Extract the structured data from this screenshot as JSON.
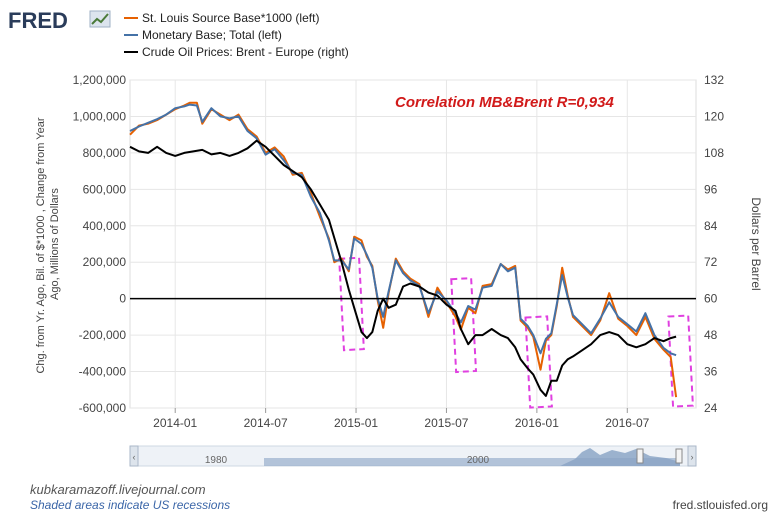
{
  "brand": {
    "logo_text": "FRED"
  },
  "chart_data": {
    "type": "line",
    "annotation": "Correlation MB&Brent R=0,934",
    "ylabel_left": "Chg. from Yr. Ago, Bil. of $*1000 , Change from Year Ago, Millions of Dollars",
    "ylabel_right": "Dollars per Barrel",
    "ylim_left": [
      -600000,
      1200000
    ],
    "ylim_right": [
      24,
      132
    ],
    "x_range": [
      2013.75,
      2016.88
    ],
    "x_ticks": [
      {
        "x": 2014.0,
        "label": "2014-01"
      },
      {
        "x": 2014.5,
        "label": "2014-07"
      },
      {
        "x": 2015.0,
        "label": "2015-01"
      },
      {
        "x": 2015.5,
        "label": "2015-07"
      },
      {
        "x": 2016.0,
        "label": "2016-01"
      },
      {
        "x": 2016.5,
        "label": "2016-07"
      }
    ],
    "y_ticks_left": [
      {
        "v": 1200000,
        "label": "1,200,000"
      },
      {
        "v": 1000000,
        "label": "1,000,000"
      },
      {
        "v": 800000,
        "label": "800,000"
      },
      {
        "v": 600000,
        "label": "600,000"
      },
      {
        "v": 400000,
        "label": "400,000"
      },
      {
        "v": 200000,
        "label": "200,000"
      },
      {
        "v": 0,
        "label": "0"
      },
      {
        "v": -200000,
        "label": "-200,000"
      },
      {
        "v": -400000,
        "label": "-400,000"
      },
      {
        "v": -600000,
        "label": "-600,000"
      }
    ],
    "y_ticks_right": [
      {
        "v": 132,
        "label": "132"
      },
      {
        "v": 120,
        "label": "120"
      },
      {
        "v": 108,
        "label": "108"
      },
      {
        "v": 96,
        "label": "96"
      },
      {
        "v": 84,
        "label": "84"
      },
      {
        "v": 72,
        "label": "72"
      },
      {
        "v": 60,
        "label": "60"
      },
      {
        "v": 48,
        "label": "48"
      },
      {
        "v": 36,
        "label": "36"
      },
      {
        "v": 24,
        "label": "24"
      }
    ],
    "series": [
      {
        "name": "St. Louis Source Base*1000 (left)",
        "color": "#e66101",
        "axis": "left",
        "points": [
          [
            2013.75,
            900000
          ],
          [
            2013.8,
            950000
          ],
          [
            2013.85,
            960000
          ],
          [
            2013.9,
            980000
          ],
          [
            2013.95,
            1010000
          ],
          [
            2014.0,
            1040000
          ],
          [
            2014.05,
            1060000
          ],
          [
            2014.08,
            1075000
          ],
          [
            2014.12,
            1075000
          ],
          [
            2014.15,
            960000
          ],
          [
            2014.2,
            1040000
          ],
          [
            2014.25,
            1010000
          ],
          [
            2014.3,
            980000
          ],
          [
            2014.35,
            1010000
          ],
          [
            2014.4,
            930000
          ],
          [
            2014.45,
            890000
          ],
          [
            2014.5,
            800000
          ],
          [
            2014.55,
            830000
          ],
          [
            2014.6,
            780000
          ],
          [
            2014.65,
            680000
          ],
          [
            2014.7,
            690000
          ],
          [
            2014.75,
            580000
          ],
          [
            2014.8,
            450000
          ],
          [
            2014.85,
            330000
          ],
          [
            2014.88,
            200000
          ],
          [
            2014.92,
            220000
          ],
          [
            2014.96,
            150000
          ],
          [
            2014.99,
            340000
          ],
          [
            2015.03,
            320000
          ],
          [
            2015.06,
            230000
          ],
          [
            2015.09,
            180000
          ],
          [
            2015.12,
            -10000
          ],
          [
            2015.15,
            -160000
          ],
          [
            2015.18,
            30000
          ],
          [
            2015.22,
            220000
          ],
          [
            2015.26,
            150000
          ],
          [
            2015.3,
            110000
          ],
          [
            2015.35,
            80000
          ],
          [
            2015.4,
            -100000
          ],
          [
            2015.45,
            60000
          ],
          [
            2015.5,
            -20000
          ],
          [
            2015.55,
            -100000
          ],
          [
            2015.58,
            -170000
          ],
          [
            2015.62,
            -50000
          ],
          [
            2015.66,
            -80000
          ],
          [
            2015.7,
            70000
          ],
          [
            2015.75,
            80000
          ],
          [
            2015.8,
            190000
          ],
          [
            2015.84,
            160000
          ],
          [
            2015.88,
            180000
          ],
          [
            2015.91,
            -120000
          ],
          [
            2015.95,
            -160000
          ],
          [
            2015.98,
            -210000
          ],
          [
            2016.02,
            -390000
          ],
          [
            2016.05,
            -230000
          ],
          [
            2016.08,
            -200000
          ],
          [
            2016.11,
            -40000
          ],
          [
            2016.14,
            170000
          ],
          [
            2016.17,
            20000
          ],
          [
            2016.2,
            -100000
          ],
          [
            2016.25,
            -150000
          ],
          [
            2016.3,
            -200000
          ],
          [
            2016.35,
            -120000
          ],
          [
            2016.4,
            30000
          ],
          [
            2016.45,
            -110000
          ],
          [
            2016.5,
            -150000
          ],
          [
            2016.55,
            -200000
          ],
          [
            2016.6,
            -100000
          ],
          [
            2016.65,
            -220000
          ],
          [
            2016.7,
            -280000
          ],
          [
            2016.74,
            -320000
          ],
          [
            2016.77,
            -540000
          ]
        ]
      },
      {
        "name": "Monetary Base; Total (left)",
        "color": "#4572a7",
        "axis": "left",
        "points": [
          [
            2013.75,
            920000
          ],
          [
            2013.8,
            945000
          ],
          [
            2013.85,
            965000
          ],
          [
            2013.9,
            985000
          ],
          [
            2013.95,
            1010000
          ],
          [
            2014.0,
            1045000
          ],
          [
            2014.05,
            1055000
          ],
          [
            2014.08,
            1065000
          ],
          [
            2014.12,
            1060000
          ],
          [
            2014.15,
            970000
          ],
          [
            2014.2,
            1045000
          ],
          [
            2014.25,
            1000000
          ],
          [
            2014.3,
            990000
          ],
          [
            2014.35,
            1000000
          ],
          [
            2014.4,
            920000
          ],
          [
            2014.45,
            880000
          ],
          [
            2014.5,
            790000
          ],
          [
            2014.55,
            820000
          ],
          [
            2014.6,
            760000
          ],
          [
            2014.65,
            690000
          ],
          [
            2014.7,
            680000
          ],
          [
            2014.75,
            560000
          ],
          [
            2014.8,
            470000
          ],
          [
            2014.85,
            320000
          ],
          [
            2014.88,
            210000
          ],
          [
            2014.92,
            210000
          ],
          [
            2014.96,
            160000
          ],
          [
            2014.99,
            330000
          ],
          [
            2015.03,
            300000
          ],
          [
            2015.06,
            240000
          ],
          [
            2015.09,
            170000
          ],
          [
            2015.12,
            0
          ],
          [
            2015.15,
            -100000
          ],
          [
            2015.18,
            40000
          ],
          [
            2015.22,
            210000
          ],
          [
            2015.26,
            140000
          ],
          [
            2015.3,
            100000
          ],
          [
            2015.35,
            70000
          ],
          [
            2015.4,
            -80000
          ],
          [
            2015.45,
            40000
          ],
          [
            2015.5,
            -10000
          ],
          [
            2015.55,
            -80000
          ],
          [
            2015.58,
            -130000
          ],
          [
            2015.62,
            -40000
          ],
          [
            2015.66,
            -60000
          ],
          [
            2015.7,
            60000
          ],
          [
            2015.75,
            70000
          ],
          [
            2015.8,
            190000
          ],
          [
            2015.84,
            150000
          ],
          [
            2015.88,
            170000
          ],
          [
            2015.91,
            -110000
          ],
          [
            2015.95,
            -150000
          ],
          [
            2015.98,
            -200000
          ],
          [
            2016.02,
            -300000
          ],
          [
            2016.05,
            -220000
          ],
          [
            2016.08,
            -190000
          ],
          [
            2016.11,
            -30000
          ],
          [
            2016.14,
            130000
          ],
          [
            2016.17,
            10000
          ],
          [
            2016.2,
            -90000
          ],
          [
            2016.25,
            -140000
          ],
          [
            2016.3,
            -190000
          ],
          [
            2016.35,
            -110000
          ],
          [
            2016.4,
            -20000
          ],
          [
            2016.45,
            -100000
          ],
          [
            2016.5,
            -140000
          ],
          [
            2016.55,
            -180000
          ],
          [
            2016.6,
            -80000
          ],
          [
            2016.65,
            -200000
          ],
          [
            2016.7,
            -270000
          ],
          [
            2016.74,
            -300000
          ],
          [
            2016.77,
            -310000
          ]
        ]
      },
      {
        "name": "Crude Oil Prices: Brent - Europe (right)",
        "color": "#000000",
        "axis": "right",
        "points": [
          [
            2013.75,
            110.0
          ],
          [
            2013.8,
            108.5
          ],
          [
            2013.85,
            108.0
          ],
          [
            2013.9,
            110.0
          ],
          [
            2013.95,
            108.0
          ],
          [
            2014.0,
            107.0
          ],
          [
            2014.05,
            108.0
          ],
          [
            2014.1,
            108.5
          ],
          [
            2014.15,
            109.0
          ],
          [
            2014.2,
            107.5
          ],
          [
            2014.25,
            108.0
          ],
          [
            2014.3,
            107.0
          ],
          [
            2014.35,
            108.0
          ],
          [
            2014.4,
            109.5
          ],
          [
            2014.45,
            112.0
          ],
          [
            2014.5,
            110.0
          ],
          [
            2014.55,
            107.0
          ],
          [
            2014.6,
            104.0
          ],
          [
            2014.65,
            102.0
          ],
          [
            2014.7,
            100.0
          ],
          [
            2014.75,
            96.0
          ],
          [
            2014.8,
            91.0
          ],
          [
            2014.85,
            86.0
          ],
          [
            2014.88,
            80.0
          ],
          [
            2014.92,
            72.0
          ],
          [
            2014.96,
            63.0
          ],
          [
            2014.99,
            57.0
          ],
          [
            2015.03,
            49.0
          ],
          [
            2015.06,
            47.0
          ],
          [
            2015.09,
            49.0
          ],
          [
            2015.12,
            56.0
          ],
          [
            2015.15,
            60.0
          ],
          [
            2015.18,
            57.0
          ],
          [
            2015.22,
            58.0
          ],
          [
            2015.26,
            64.0
          ],
          [
            2015.3,
            65.0
          ],
          [
            2015.35,
            64.0
          ],
          [
            2015.4,
            62.0
          ],
          [
            2015.45,
            61.0
          ],
          [
            2015.5,
            58.0
          ],
          [
            2015.55,
            56.0
          ],
          [
            2015.58,
            50.0
          ],
          [
            2015.62,
            45.0
          ],
          [
            2015.66,
            48.0
          ],
          [
            2015.7,
            48.0
          ],
          [
            2015.75,
            50.0
          ],
          [
            2015.8,
            48.0
          ],
          [
            2015.84,
            47.0
          ],
          [
            2015.88,
            44.0
          ],
          [
            2015.91,
            40.0
          ],
          [
            2015.95,
            37.0
          ],
          [
            2015.98,
            35.0
          ],
          [
            2016.02,
            30.0
          ],
          [
            2016.05,
            28.0
          ],
          [
            2016.08,
            33.0
          ],
          [
            2016.11,
            33.0
          ],
          [
            2016.14,
            38.0
          ],
          [
            2016.17,
            40.0
          ],
          [
            2016.2,
            41.0
          ],
          [
            2016.25,
            43.0
          ],
          [
            2016.3,
            45.0
          ],
          [
            2016.35,
            48.0
          ],
          [
            2016.4,
            49.0
          ],
          [
            2016.45,
            48.0
          ],
          [
            2016.5,
            45.0
          ],
          [
            2016.55,
            44.0
          ],
          [
            2016.6,
            45.0
          ],
          [
            2016.65,
            47.0
          ],
          [
            2016.7,
            46.0
          ],
          [
            2016.74,
            47.0
          ],
          [
            2016.77,
            47.5
          ]
        ]
      }
    ],
    "highlight_boxes": [
      {
        "x0": 2014.92,
        "x1": 2015.03,
        "y_top": 222000,
        "y_bot": -280000
      },
      {
        "x0": 2015.54,
        "x1": 2015.65,
        "y_top": 110000,
        "y_bot": -400000
      },
      {
        "x0": 2015.95,
        "x1": 2016.07,
        "y_top": -100000,
        "y_bot": -595000
      },
      {
        "x0": 2016.74,
        "x1": 2016.85,
        "y_top": -95000,
        "y_bot": -590000
      }
    ],
    "range_selector": {
      "labels": [
        "1980",
        "2000"
      ]
    }
  },
  "watermark": "kubkaramazoff.livejournal.com",
  "recession_note": "Shaded areas indicate US recessions",
  "source": "fred.stlouisfed.org"
}
